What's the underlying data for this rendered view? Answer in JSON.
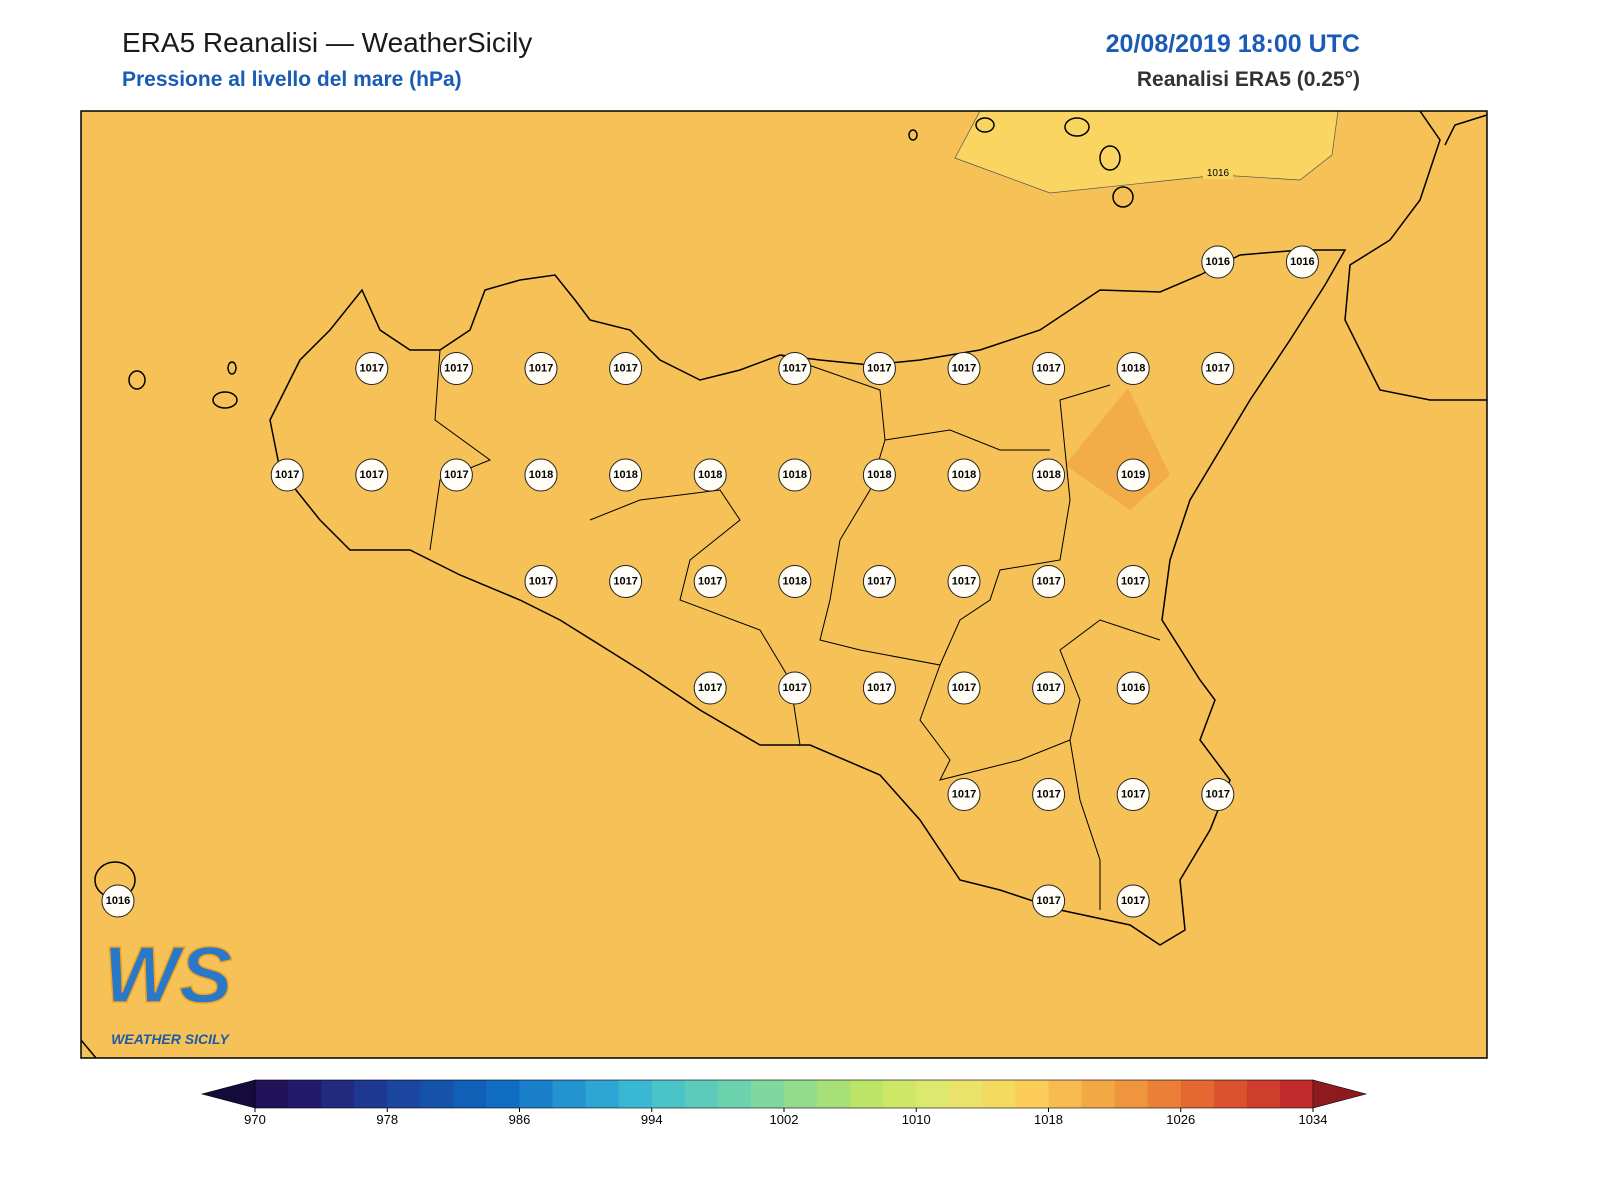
{
  "header": {
    "title": "ERA5 Reanalisi — WeatherSicily",
    "subtitle": "Pressione al livello del mare (hPa)",
    "datetime": "20/08/2019 18:00 UTC",
    "source": "Reanalisi ERA5 (0.25°)"
  },
  "map": {
    "background": "#f6c156",
    "contour_labels": [
      "1016"
    ],
    "stations": [
      [
        null,
        null,
        null,
        null,
        null,
        null,
        null,
        null,
        null,
        null,
        null,
        null,
        null,
        1016,
        1016
      ],
      [
        null,
        null,
        null,
        1017,
        1017,
        1017,
        1017,
        null,
        1017,
        1017,
        1017,
        1017,
        1018,
        1017,
        null
      ],
      [
        null,
        null,
        1017,
        1017,
        1017,
        1018,
        1018,
        1018,
        1018,
        1018,
        1018,
        1018,
        1019,
        null,
        null
      ],
      [
        null,
        null,
        null,
        null,
        null,
        1017,
        1017,
        1017,
        1018,
        1017,
        1017,
        1017,
        1017,
        null,
        null
      ],
      [
        null,
        null,
        null,
        null,
        null,
        null,
        null,
        1017,
        1017,
        1017,
        1017,
        1017,
        1016,
        null,
        null
      ],
      [
        null,
        null,
        null,
        null,
        null,
        null,
        null,
        null,
        null,
        null,
        1017,
        1017,
        1017,
        1017,
        null
      ],
      [
        1016,
        null,
        null,
        null,
        null,
        null,
        null,
        null,
        null,
        null,
        null,
        1017,
        1017,
        null,
        null
      ]
    ]
  },
  "logo": {
    "mark": "WS",
    "text": "WEATHER SICILY"
  },
  "colorbar": {
    "levels": [
      970,
      972,
      974,
      976,
      978,
      980,
      982,
      984,
      986,
      988,
      990,
      992,
      994,
      996,
      998,
      1000,
      1002,
      1004,
      1006,
      1008,
      1010,
      1012,
      1014,
      1016,
      1018,
      1020,
      1022,
      1024,
      1026,
      1028,
      1030,
      1032,
      1034
    ],
    "colors": [
      "#22125a",
      "#231a6e",
      "#222a80",
      "#1d3890",
      "#1a469f",
      "#1553ab",
      "#1060b8",
      "#0f6ec4",
      "#1a80cc",
      "#2394d0",
      "#2ea6d3",
      "#3ab8d3",
      "#4bc4c8",
      "#5ccbbc",
      "#6cd2ae",
      "#80d89e",
      "#94dd8c",
      "#a8e078",
      "#bce466",
      "#cee766",
      "#dde86e",
      "#eae26a",
      "#f5da62",
      "#fbcc5a",
      "#f7bb50",
      "#f3a846",
      "#ef953e",
      "#eb7f37",
      "#e46832",
      "#da522e",
      "#cf3d2c",
      "#c22b2b"
    ],
    "under_color": "#150a3c",
    "over_color": "#8e1a1e",
    "ticks": [
      970,
      978,
      986,
      994,
      1002,
      1010,
      1018,
      1026,
      1034
    ]
  }
}
